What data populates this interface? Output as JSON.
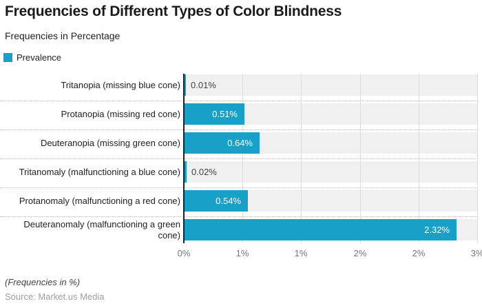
{
  "header": {
    "title": "Frequencies of Different Types of Color Blindness",
    "subtitle": "Frequencies in Percentage"
  },
  "legend": {
    "label": "Prevalence",
    "swatch_color": "#18a0c8"
  },
  "chart_data": {
    "type": "bar",
    "orientation": "horizontal",
    "title": "Frequencies of Different Types of Color Blindness",
    "subtitle": "Frequencies in Percentage",
    "categories": [
      "Tritanopia (missing blue cone)",
      "Protanopia (missing red cone)",
      "Deuteranopia (missing green cone)",
      "Tritanomaly (malfunctioning a blue cone)",
      "Protanomaly (malfunctioning a red cone)",
      "Deuteranomaly (malfunctioning a green cone)"
    ],
    "series": [
      {
        "name": "Prevalence",
        "values": [
          0.01,
          0.51,
          0.64,
          0.02,
          0.54,
          2.32
        ]
      }
    ],
    "value_labels": [
      "0.01%",
      "0.51%",
      "0.64%",
      "0.02%",
      "0.54%",
      "2.32%"
    ],
    "xlim": [
      0,
      2.5
    ],
    "x_tick_values": [
      0,
      0.5,
      1.0,
      1.5,
      2.0,
      2.5
    ],
    "x_tick_labels": [
      "0%",
      "1%",
      "1%",
      "2%",
      "2%",
      "3%"
    ],
    "grid": true,
    "legend_position": "top-left",
    "colors": {
      "bar": "#18a0c8",
      "track": "#f0f0f0",
      "gridline": "#dbdbdb",
      "axis_line": "#212121",
      "separator": "#bdbdbd",
      "tick_label": "#757575",
      "value_inside": "#ffffff",
      "value_outside": "#424242"
    }
  },
  "footer": {
    "note": "(Frequencies in %)",
    "source": "Source: Market.us Media"
  }
}
